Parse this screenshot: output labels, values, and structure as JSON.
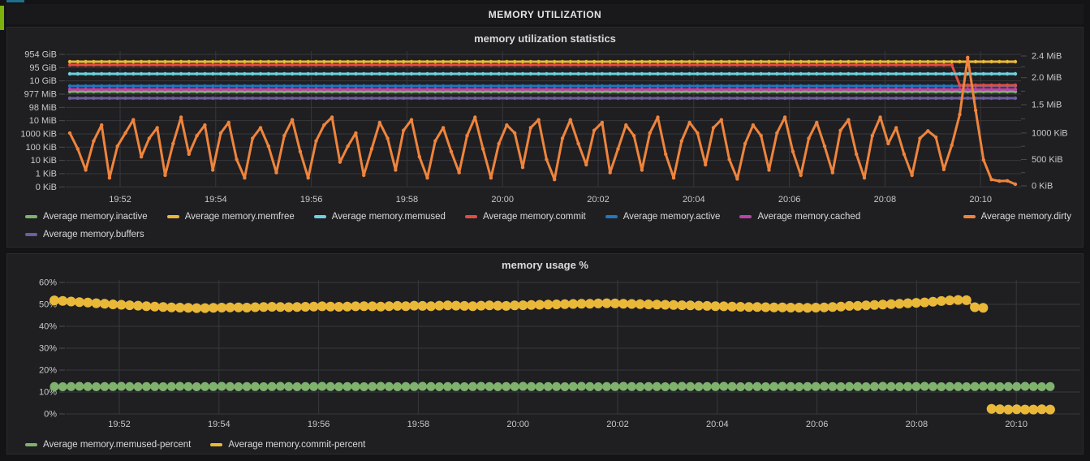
{
  "page": {
    "header_title": "MEMORY UTILIZATION",
    "accents": {
      "row_indicator_green": "#7cb00a",
      "top_strip_blue": "#1f6e8c"
    }
  },
  "chart_data": [
    {
      "type": "line",
      "title": "memory utilization statistics",
      "x_tick_labels": [
        "19:52",
        "19:54",
        "19:56",
        "19:58",
        "20:00",
        "20:02",
        "20:04",
        "20:06",
        "20:08",
        "20:10"
      ],
      "time_range": {
        "start": "19:50:50",
        "end": "20:10:40",
        "step_seconds": 10
      },
      "left_axis": {
        "scale": "log10",
        "tick_labels": [
          "954 GiB",
          "95 GiB",
          "10 GiB",
          "977 MiB",
          "98 MiB",
          "10 MiB",
          "1000 KiB",
          "100 KiB",
          "10 KiB",
          "1 KiB",
          "0 KiB"
        ]
      },
      "right_axis": {
        "scale": "linear",
        "tick_labels": [
          "2.4 MiB",
          "2.0 MiB",
          "1.5 MiB",
          "1000 KiB",
          "500 KiB",
          "0 KiB"
        ],
        "tick_values_kib": [
          2458,
          2048,
          1536,
          1000,
          500,
          0
        ],
        "max_kib": 2458
      },
      "grid": true,
      "legend_position": "bottom",
      "series": [
        {
          "name": "Average memory.inactive",
          "color": "#7EB26D",
          "axis": "left",
          "constant_kib": 1550000
        },
        {
          "name": "Average memory.memfree",
          "color": "#EAB839",
          "axis": "left",
          "constant_kib": 280000000
        },
        {
          "name": "Average memory.memused",
          "color": "#6ED0E0",
          "axis": "left",
          "constant_kib": 34000000
        },
        {
          "name": "Average memory.commit",
          "color": "#E24D42",
          "axis": "left",
          "constant_kib": 160000000,
          "drop_at_index": 112,
          "drop_to_kib": 4700000
        },
        {
          "name": "Average memory.active",
          "color": "#1F78C1",
          "axis": "left",
          "constant_kib": 4100000
        },
        {
          "name": "Average memory.cached",
          "color": "#BA43A9",
          "axis": "left",
          "constant_kib": 2300000
        },
        {
          "name": "Average memory.buffers",
          "color": "#705DA0",
          "axis": "left",
          "constant_kib": 490000
        },
        {
          "name": "Average memory.dirty",
          "color": "#EF843C",
          "axis": "right",
          "values_kib": [
            1000,
            700,
            300,
            850,
            1150,
            150,
            750,
            1000,
            1250,
            550,
            900,
            1100,
            200,
            800,
            1300,
            600,
            950,
            1150,
            300,
            1000,
            1200,
            500,
            150,
            900,
            1100,
            750,
            250,
            950,
            1250,
            650,
            150,
            850,
            1150,
            1300,
            450,
            750,
            1000,
            200,
            700,
            1200,
            900,
            300,
            1050,
            1250,
            550,
            150,
            850,
            1100,
            650,
            250,
            950,
            1300,
            700,
            150,
            800,
            1150,
            1000,
            350,
            1100,
            1250,
            500,
            120,
            900,
            1250,
            800,
            400,
            1050,
            1200,
            250,
            700,
            1150,
            950,
            300,
            1000,
            1300,
            600,
            150,
            850,
            1200,
            1000,
            400,
            1100,
            1250,
            500,
            130,
            800,
            1150,
            950,
            300,
            1000,
            1300,
            650,
            200,
            900,
            1200,
            750,
            250,
            1050,
            1250,
            600,
            150,
            950,
            1300,
            800,
            1100,
            600,
            200,
            900,
            1040,
            920,
            310,
            770,
            1350,
            2430,
            1430,
            490,
            120,
            90,
            95,
            30
          ]
        }
      ]
    },
    {
      "type": "line-points",
      "title": "memory usage %",
      "x_tick_labels": [
        "19:52",
        "19:54",
        "19:56",
        "19:58",
        "20:00",
        "20:02",
        "20:04",
        "20:06",
        "20:08",
        "20:10"
      ],
      "time_range": {
        "start": "19:50:50",
        "end": "20:10:40",
        "step_seconds": 10
      },
      "y_axis": {
        "scale": "linear",
        "tick_labels": [
          "60%",
          "50%",
          "40%",
          "30%",
          "20%",
          "10%",
          "0%"
        ],
        "max_pct": 60
      },
      "grid": true,
      "legend_position": "bottom",
      "series": [
        {
          "name": "Average memory.memused-percent",
          "color": "#7EB26D",
          "values_pct": [
            12.5,
            12.4,
            12.5,
            12.6,
            12.5,
            12.4,
            12.5,
            12.5,
            12.6,
            12.5,
            12.4,
            12.5,
            12.5,
            12.4,
            12.5,
            12.6,
            12.5,
            12.4,
            12.5,
            12.5,
            12.6,
            12.5,
            12.4,
            12.5,
            12.5,
            12.4,
            12.5,
            12.6,
            12.5,
            12.4,
            12.5,
            12.5,
            12.6,
            12.5,
            12.4,
            12.5,
            12.5,
            12.4,
            12.5,
            12.6,
            12.5,
            12.4,
            12.5,
            12.5,
            12.6,
            12.5,
            12.4,
            12.5,
            12.5,
            12.4,
            12.5,
            12.6,
            12.5,
            12.4,
            12.5,
            12.5,
            12.6,
            12.5,
            12.4,
            12.5,
            12.5,
            12.4,
            12.5,
            12.6,
            12.5,
            12.4,
            12.5,
            12.5,
            12.6,
            12.5,
            12.4,
            12.5,
            12.5,
            12.4,
            12.5,
            12.6,
            12.5,
            12.4,
            12.5,
            12.5,
            12.6,
            12.5,
            12.4,
            12.5,
            12.5,
            12.4,
            12.5,
            12.6,
            12.5,
            12.4,
            12.5,
            12.5,
            12.6,
            12.5,
            12.4,
            12.5,
            12.5,
            12.4,
            12.5,
            12.6,
            12.5,
            12.4,
            12.5,
            12.5,
            12.6,
            12.5,
            12.4,
            12.5,
            12.5,
            12.4,
            12.5,
            12.6,
            12.5,
            12.4,
            12.5,
            12.5,
            12.6,
            12.5,
            12.4,
            12.5
          ]
        },
        {
          "name": "Average memory.commit-percent",
          "color": "#EAB839",
          "values_pct": [
            51.8,
            51.6,
            51.3,
            51.0,
            50.8,
            50.5,
            50.3,
            50.0,
            49.8,
            49.6,
            49.4,
            49.2,
            49.0,
            48.8,
            48.6,
            48.5,
            48.4,
            48.3,
            48.3,
            48.4,
            48.5,
            48.6,
            48.6,
            48.5,
            48.7,
            48.8,
            48.9,
            48.8,
            48.7,
            48.8,
            48.9,
            49.0,
            49.1,
            49.0,
            48.9,
            49.0,
            49.1,
            49.2,
            49.1,
            49.0,
            49.2,
            49.3,
            49.2,
            49.4,
            49.3,
            49.2,
            49.4,
            49.5,
            49.4,
            49.3,
            49.2,
            49.4,
            49.5,
            49.4,
            49.3,
            49.5,
            49.6,
            49.7,
            49.8,
            49.9,
            50.0,
            50.1,
            50.2,
            50.3,
            50.3,
            50.4,
            50.5,
            50.4,
            50.3,
            50.2,
            50.1,
            50.0,
            49.9,
            49.8,
            49.7,
            49.6,
            49.5,
            49.4,
            49.3,
            49.2,
            49.1,
            49.0,
            48.9,
            48.8,
            48.8,
            48.7,
            48.6,
            48.6,
            48.5,
            48.5,
            48.4,
            48.5,
            48.6,
            48.8,
            49.0,
            49.3,
            49.3,
            49.5,
            49.7,
            49.9,
            50.1,
            50.3,
            50.5,
            50.7,
            50.9,
            51.2,
            51.5,
            51.8,
            52.0,
            51.9,
            48.7,
            48.4,
            2.3,
            2.1,
            2.0,
            2.1,
            2.0,
            2.0,
            2.1,
            2.0
          ]
        }
      ]
    }
  ]
}
